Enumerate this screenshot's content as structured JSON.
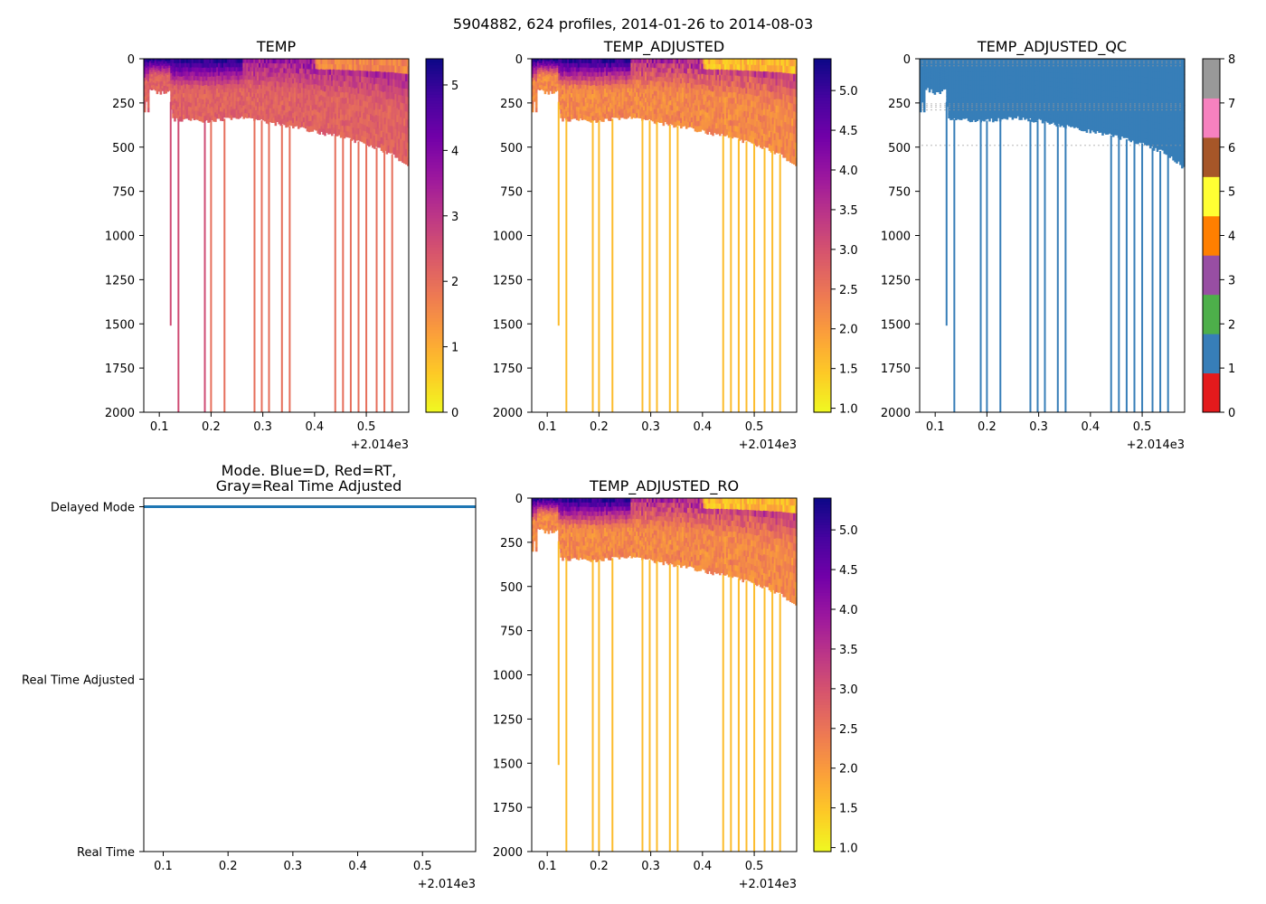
{
  "figure_title": "5904882, 624 profiles, 2014-01-26 to 2014-08-03",
  "colors": {
    "plasma": [
      "#f0f921",
      "#fdca26",
      "#fb9f3a",
      "#ed7953",
      "#d8576b",
      "#bd3786",
      "#9c179e",
      "#7201a8",
      "#46039f",
      "#0d0887"
    ],
    "qc": [
      "#e41a1c",
      "#377eb8",
      "#4daf4a",
      "#984ea3",
      "#ff7f00",
      "#ffff33",
      "#a65628",
      "#f781bf",
      "#999999"
    ],
    "mode_line": "#1f77b4"
  },
  "chart_data": [
    {
      "id": "temp",
      "type": "heatmap",
      "title": "TEMP",
      "xlim": [
        0.07,
        0.582
      ],
      "xticks": [
        0.1,
        0.2,
        0.3,
        0.4,
        0.5
      ],
      "xtick_labels": [
        "0.1",
        "0.2",
        "0.3",
        "0.4",
        "0.5"
      ],
      "x_offset_label": "+2.014e3",
      "ylim": [
        2000,
        0
      ],
      "yticks": [
        0,
        250,
        500,
        750,
        1000,
        1250,
        1500,
        1750,
        2000
      ],
      "ytick_labels": [
        "0",
        "250",
        "500",
        "750",
        "1000",
        "1250",
        "1500",
        "1750",
        "2000"
      ],
      "colorbar": {
        "range": [
          0,
          5.4
        ],
        "ticks": [
          0,
          1,
          2,
          3,
          4,
          5
        ],
        "tick_labels": [
          "0",
          "1",
          "2",
          "3",
          "4",
          "5"
        ]
      },
      "profile_bottom_depth_m": [
        [
          0.07,
          290
        ],
        [
          0.082,
          170
        ],
        [
          0.1,
          190
        ],
        [
          0.12,
          180
        ],
        [
          0.125,
          340
        ],
        [
          0.2,
          350
        ],
        [
          0.25,
          330
        ],
        [
          0.3,
          350
        ],
        [
          0.35,
          380
        ],
        [
          0.4,
          410
        ],
        [
          0.45,
          440
        ],
        [
          0.5,
          480
        ],
        [
          0.55,
          540
        ],
        [
          0.582,
          620
        ]
      ],
      "deep_profiles": [
        [
          0.122,
          1510
        ],
        [
          0.137,
          2000
        ],
        [
          0.188,
          2000
        ],
        [
          0.2,
          2000
        ],
        [
          0.226,
          2000
        ],
        [
          0.284,
          2000
        ],
        [
          0.298,
          2000
        ],
        [
          0.312,
          2000
        ],
        [
          0.337,
          2000
        ],
        [
          0.352,
          2000
        ],
        [
          0.44,
          2000
        ],
        [
          0.455,
          2000
        ],
        [
          0.47,
          2000
        ],
        [
          0.485,
          2000
        ],
        [
          0.5,
          2000
        ],
        [
          0.52,
          2000
        ],
        [
          0.535,
          2000
        ],
        [
          0.55,
          2000
        ]
      ],
      "surface_temp_c": 5.3,
      "deep_temp_c": 2.2
    },
    {
      "id": "temp_adjusted",
      "type": "heatmap",
      "title": "TEMP_ADJUSTED",
      "xlim": [
        0.07,
        0.582
      ],
      "xticks": [
        0.1,
        0.2,
        0.3,
        0.4,
        0.5
      ],
      "xtick_labels": [
        "0.1",
        "0.2",
        "0.3",
        "0.4",
        "0.5"
      ],
      "x_offset_label": "+2.014e3",
      "ylim": [
        2000,
        0
      ],
      "yticks": [
        0,
        250,
        500,
        750,
        1000,
        1250,
        1500,
        1750,
        2000
      ],
      "ytick_labels": [
        "0",
        "250",
        "500",
        "750",
        "1000",
        "1250",
        "1500",
        "1750",
        "2000"
      ],
      "colorbar": {
        "range": [
          0.95,
          5.4
        ],
        "ticks": [
          1.0,
          1.5,
          2.0,
          2.5,
          3.0,
          3.5,
          4.0,
          4.5,
          5.0
        ],
        "tick_labels": [
          "1.0",
          "1.5",
          "2.0",
          "2.5",
          "3.0",
          "3.5",
          "4.0",
          "4.5",
          "5.0"
        ]
      }
    },
    {
      "id": "temp_adjusted_qc",
      "type": "heatmap",
      "title": "TEMP_ADJUSTED_QC",
      "xlim": [
        0.07,
        0.582
      ],
      "xticks": [
        0.1,
        0.2,
        0.3,
        0.4,
        0.5
      ],
      "xtick_labels": [
        "0.1",
        "0.2",
        "0.3",
        "0.4",
        "0.5"
      ],
      "x_offset_label": "+2.014e3",
      "ylim": [
        2000,
        0
      ],
      "yticks": [
        0,
        250,
        500,
        750,
        1000,
        1250,
        1500,
        1750,
        2000
      ],
      "ytick_labels": [
        "0",
        "250",
        "500",
        "750",
        "1000",
        "1250",
        "1500",
        "1750",
        "2000"
      ],
      "colorbar": {
        "range": [
          0,
          8
        ],
        "ticks": [
          0,
          1,
          2,
          3,
          4,
          5,
          6,
          7,
          8
        ],
        "tick_labels": [
          "0",
          "1",
          "2",
          "3",
          "4",
          "5",
          "6",
          "7",
          "8"
        ]
      },
      "dominant_qc_flag": 1
    },
    {
      "id": "mode",
      "type": "line",
      "title": "Mode. Blue=D, Red=RT,",
      "title_line2": "Gray=Real Time Adjusted",
      "xlim": [
        0.07,
        0.582
      ],
      "xticks": [
        0.1,
        0.2,
        0.3,
        0.4,
        0.5
      ],
      "xtick_labels": [
        "0.1",
        "0.2",
        "0.3",
        "0.4",
        "0.5"
      ],
      "x_offset_label": "+2.014e3",
      "ylim": [
        0,
        2.05
      ],
      "ytick_values": [
        2,
        1,
        0
      ],
      "ytick_labels": [
        "Delayed Mode",
        "Real Time Adjusted",
        "Real Time"
      ],
      "series": [
        {
          "name": "Delayed Mode",
          "x": [
            0.07,
            0.582
          ],
          "y": [
            2,
            2
          ]
        }
      ]
    },
    {
      "id": "temp_adjusted_ro",
      "type": "heatmap",
      "title": "TEMP_ADJUSTED_RO",
      "xlim": [
        0.07,
        0.582
      ],
      "xticks": [
        0.1,
        0.2,
        0.3,
        0.4,
        0.5
      ],
      "xtick_labels": [
        "0.1",
        "0.2",
        "0.3",
        "0.4",
        "0.5"
      ],
      "x_offset_label": "+2.014e3",
      "ylim": [
        2000,
        0
      ],
      "yticks": [
        0,
        250,
        500,
        750,
        1000,
        1250,
        1500,
        1750,
        2000
      ],
      "ytick_labels": [
        "0",
        "250",
        "500",
        "750",
        "1000",
        "1250",
        "1500",
        "1750",
        "2000"
      ],
      "colorbar": {
        "range": [
          0.95,
          5.4
        ],
        "ticks": [
          1.0,
          1.5,
          2.0,
          2.5,
          3.0,
          3.5,
          4.0,
          4.5,
          5.0
        ],
        "tick_labels": [
          "1.0",
          "1.5",
          "2.0",
          "2.5",
          "3.0",
          "3.5",
          "4.0",
          "4.5",
          "5.0"
        ]
      }
    }
  ]
}
